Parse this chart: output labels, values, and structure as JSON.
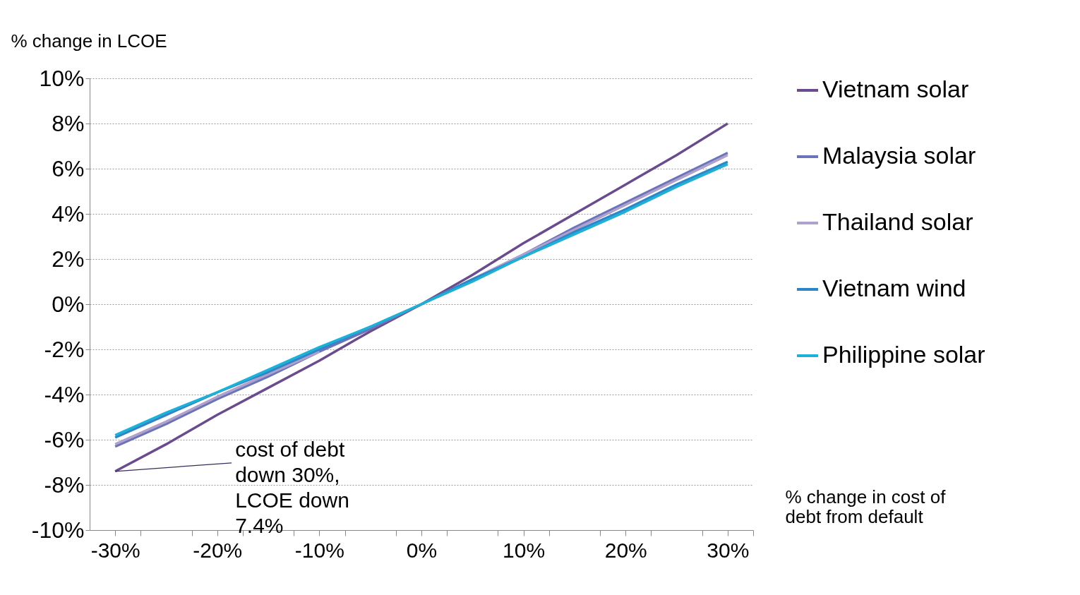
{
  "chart_data": {
    "type": "line",
    "x": [
      -30,
      -25,
      -20,
      -15,
      -10,
      -5,
      0,
      5,
      10,
      15,
      20,
      25,
      30
    ],
    "series": [
      {
        "name": "Vietnam solar",
        "color": "#6a4c8c",
        "values": [
          -7.4,
          -6.2,
          -4.9,
          -3.7,
          -2.5,
          -1.2,
          0,
          1.3,
          2.7,
          4.0,
          5.3,
          6.6,
          8.0
        ]
      },
      {
        "name": "Malaysia solar",
        "color": "#6b74b8",
        "values": [
          -6.3,
          -5.3,
          -4.2,
          -3.2,
          -2.1,
          -1.1,
          0,
          1.1,
          2.2,
          3.4,
          4.5,
          5.6,
          6.7
        ]
      },
      {
        "name": "Thailand solar",
        "color": "#b0a0cc",
        "values": [
          -6.2,
          -5.2,
          -4.1,
          -3.1,
          -2.1,
          null,
          0,
          1.1,
          2.2,
          3.3,
          4.4,
          5.5,
          6.6
        ]
      },
      {
        "name": "Vietnam wind",
        "color": "#2f86c6",
        "values": [
          -5.9,
          -4.9,
          -3.9,
          -3.0,
          -2.0,
          -1.0,
          0,
          1.1,
          2.1,
          3.2,
          4.2,
          5.3,
          6.3
        ]
      },
      {
        "name": "Philippine solar",
        "color": "#1fb0d8",
        "values": [
          -5.8,
          -4.8,
          -3.9,
          -2.9,
          -1.9,
          -1.0,
          0,
          1.0,
          2.1,
          3.1,
          4.1,
          5.2,
          6.2
        ]
      }
    ],
    "xlabel": "% change in cost of debt from default",
    "ylabel": "% change in LCOE",
    "xlim": [
      -32.5,
      32.5
    ],
    "xticks": [
      {
        "value": -30,
        "label": "-30%"
      },
      {
        "value": -27.5,
        "label": null
      },
      {
        "value": -22.5,
        "label": null
      },
      {
        "value": -20,
        "label": "-20%"
      },
      {
        "value": -17.5,
        "label": null
      },
      {
        "value": -12.5,
        "label": null
      },
      {
        "value": -10,
        "label": "-10%"
      },
      {
        "value": -7.5,
        "label": null
      },
      {
        "value": -2.5,
        "label": null
      },
      {
        "value": 0,
        "label": "0%"
      },
      {
        "value": 2.5,
        "label": null
      },
      {
        "value": 7.5,
        "label": null
      },
      {
        "value": 10,
        "label": "10%"
      },
      {
        "value": 12.5,
        "label": null
      },
      {
        "value": 17.5,
        "label": null
      },
      {
        "value": 20,
        "label": "20%"
      },
      {
        "value": 22.5,
        "label": null
      },
      {
        "value": 27.5,
        "label": null
      },
      {
        "value": 30,
        "label": "30%"
      },
      {
        "value": 32.5,
        "label": null
      }
    ],
    "ylim": [
      -10,
      10
    ],
    "yticks": [
      {
        "value": -10,
        "label": "-10%"
      },
      {
        "value": -8,
        "label": "-8%"
      },
      {
        "value": -6,
        "label": "-6%"
      },
      {
        "value": -4,
        "label": "-4%"
      },
      {
        "value": -2,
        "label": "-2%"
      },
      {
        "value": 0,
        "label": "0%"
      },
      {
        "value": 2,
        "label": "2%"
      },
      {
        "value": 4,
        "label": "4%"
      },
      {
        "value": 6,
        "label": "6%"
      },
      {
        "value": 8,
        "label": "8%"
      },
      {
        "value": 10,
        "label": "10%"
      }
    ],
    "annotations": [
      {
        "text": "cost of debt down 30%, LCOE down 7.4%",
        "x": -30,
        "y": -7.4
      }
    ],
    "grid": "y",
    "legend": "right",
    "marker": "none",
    "line_style": "solid"
  }
}
